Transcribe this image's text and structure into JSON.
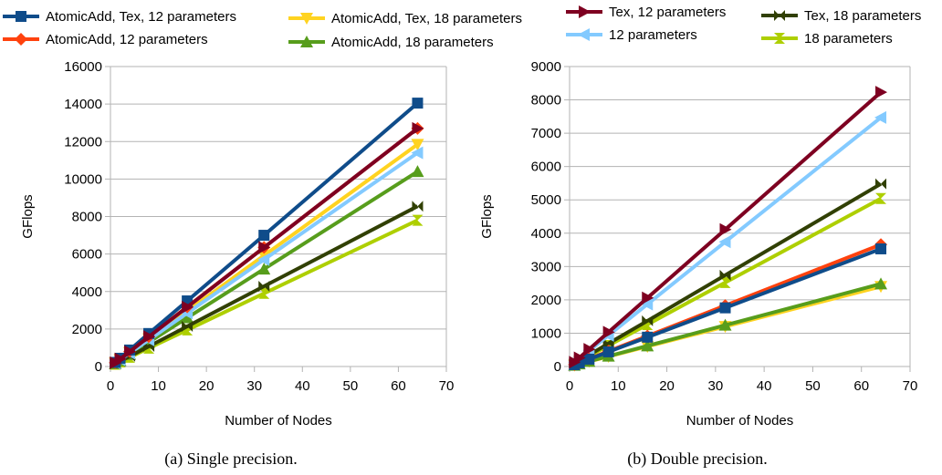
{
  "legend_a": [
    {
      "label": "AtomicAdd, Tex, 12 parameters",
      "series": 0
    },
    {
      "label": "AtomicAdd, Tex, 18 parameters",
      "series": 1
    },
    {
      "label": "AtomicAdd, 12 parameters",
      "series": 2
    },
    {
      "label": "AtomicAdd, 18 parameters",
      "series": 3
    }
  ],
  "legend_b": [
    {
      "label": "Tex, 12 parameters",
      "series": 0
    },
    {
      "label": "Tex, 18 parameters",
      "series": 1
    },
    {
      "label": "12 parameters",
      "series": 2
    },
    {
      "label": "18 parameters",
      "series": 3
    }
  ],
  "captions": {
    "a": "(a) Single precision.",
    "b": "(b) Double precision."
  },
  "chart_data": [
    {
      "type": "line",
      "xlabel": "Number of Nodes",
      "ylabel": "GFlops",
      "xlim": [
        0,
        70
      ],
      "ylim": [
        0,
        16000
      ],
      "xticks": [
        0,
        10,
        20,
        30,
        40,
        50,
        60,
        70
      ],
      "yticks": [
        0,
        2000,
        4000,
        6000,
        8000,
        10000,
        12000,
        14000,
        16000
      ],
      "grid": true,
      "legend_position": "top",
      "x": [
        1,
        2,
        4,
        8,
        16,
        32,
        64
      ],
      "series": [
        {
          "name": "AtomicAdd, Tex, 12 parameters",
          "color": "#0f4c8a",
          "marker": "square",
          "values": [
            220,
            440,
            880,
            1760,
            3500,
            7000,
            14050
          ]
        },
        {
          "name": "AtomicAdd, 12 parameters",
          "color": "#ff420e",
          "marker": "diamond",
          "values": [
            200,
            400,
            800,
            1590,
            3180,
            6350,
            12700
          ]
        },
        {
          "name": "AtomicAdd, Tex, 18 parameters",
          "color": "#ffd320",
          "marker": "triangle-down",
          "values": [
            185,
            370,
            740,
            1480,
            2960,
            5920,
            11850
          ]
        },
        {
          "name": "AtomicAdd, 18 parameters",
          "color": "#579d1c",
          "marker": "triangle-up",
          "values": [
            160,
            325,
            650,
            1300,
            2600,
            5200,
            10400
          ]
        },
        {
          "name": "Tex, 12 parameters",
          "color": "#7e0021",
          "marker": "triangle-right",
          "values": [
            200,
            400,
            790,
            1590,
            3170,
            6350,
            12700
          ]
        },
        {
          "name": "12 parameters",
          "color": "#83caff",
          "marker": "triangle-left",
          "values": [
            180,
            360,
            710,
            1420,
            2850,
            5700,
            11400
          ]
        },
        {
          "name": "Tex, 18 parameters",
          "color": "#314004",
          "marker": "bowtie",
          "values": [
            135,
            270,
            540,
            1070,
            2140,
            4280,
            8550
          ]
        },
        {
          "name": "18 parameters",
          "color": "#aecf00",
          "marker": "hourglass",
          "values": [
            120,
            245,
            490,
            980,
            1950,
            3900,
            7800
          ]
        }
      ]
    },
    {
      "type": "line",
      "xlabel": "Number of Nodes",
      "ylabel": "GFlops",
      "xlim": [
        0,
        70
      ],
      "ylim": [
        0,
        9000
      ],
      "xticks": [
        0,
        10,
        20,
        30,
        40,
        50,
        60,
        70
      ],
      "yticks": [
        0,
        1000,
        2000,
        3000,
        4000,
        5000,
        6000,
        7000,
        8000,
        9000
      ],
      "grid": true,
      "legend_position": "top",
      "x": [
        1,
        2,
        4,
        8,
        16,
        32,
        64
      ],
      "series": [
        {
          "name": "AtomicAdd, Tex, 12 parameters",
          "color": "#0f4c8a",
          "marker": "square",
          "values": [
            55,
            110,
            220,
            440,
            880,
            1760,
            3530
          ]
        },
        {
          "name": "AtomicAdd, 12 parameters",
          "color": "#ff420e",
          "marker": "diamond",
          "values": [
            57,
            115,
            230,
            460,
            915,
            1830,
            3660
          ]
        },
        {
          "name": "AtomicAdd, Tex, 18 parameters",
          "color": "#ffd320",
          "marker": "triangle-down",
          "values": [
            38,
            75,
            150,
            300,
            600,
            1200,
            2400
          ]
        },
        {
          "name": "AtomicAdd, 18 parameters",
          "color": "#579d1c",
          "marker": "triangle-up",
          "values": [
            39,
            78,
            155,
            310,
            620,
            1240,
            2480
          ]
        },
        {
          "name": "Tex, 12 parameters",
          "color": "#7e0021",
          "marker": "triangle-right",
          "values": [
            130,
            260,
            515,
            1030,
            2060,
            4110,
            8230
          ]
        },
        {
          "name": "12 parameters",
          "color": "#83caff",
          "marker": "triangle-left",
          "values": [
            117,
            235,
            470,
            935,
            1870,
            3740,
            7470
          ]
        },
        {
          "name": "Tex, 18 parameters",
          "color": "#314004",
          "marker": "bowtie",
          "values": [
            86,
            172,
            345,
            690,
            1370,
            2740,
            5480
          ]
        },
        {
          "name": "18 parameters",
          "color": "#aecf00",
          "marker": "hourglass",
          "values": [
            79,
            158,
            315,
            630,
            1260,
            2520,
            5040
          ]
        }
      ]
    }
  ]
}
